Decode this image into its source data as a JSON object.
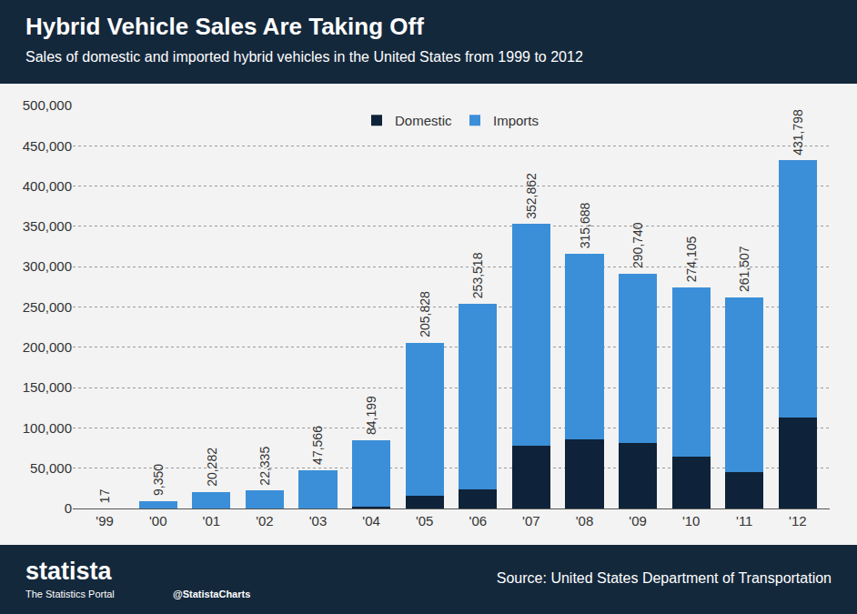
{
  "header": {
    "title": "Hybrid Vehicle Sales Are Taking Off",
    "subtitle": "Sales of domestic and imported hybrid vehicles in the United States from 1999 to 2012"
  },
  "chart_data": {
    "type": "bar",
    "stacked": true,
    "grid": true,
    "legend": "top",
    "categories": [
      "'99",
      "'00",
      "'01",
      "'02",
      "'03",
      "'04",
      "'05",
      "'06",
      "'07",
      "'08",
      "'09",
      "'10",
      "'11",
      "'12"
    ],
    "series": [
      {
        "name": "Domestic",
        "color": "#0e2339",
        "values": [
          0,
          0,
          0,
          0,
          0,
          2000,
          16000,
          24000,
          78000,
          86000,
          81000,
          64000,
          45000,
          113000
        ]
      },
      {
        "name": "Imports",
        "color": "#3b8fd8",
        "values": [
          17,
          9350,
          20282,
          22335,
          47566,
          82199,
          189828,
          229518,
          274862,
          229688,
          209740,
          210105,
          216507,
          318798
        ]
      }
    ],
    "totals": {
      "values": [
        17,
        9350,
        20282,
        22335,
        47566,
        84199,
        205828,
        253518,
        352862,
        315688,
        290740,
        274105,
        261507,
        431798
      ],
      "value_labels": [
        "17",
        "9,350",
        "20,282",
        "22,335",
        "47,566",
        "84,199",
        "205,828",
        "253,518",
        "352,862",
        "315,688",
        "290,740",
        "274,105",
        "261,507",
        "431,798"
      ]
    },
    "ylim": [
      0,
      500000
    ],
    "yticks": [
      0,
      {
        "value": 50000,
        "label": "50,000"
      },
      {
        "value": 100000,
        "label": "100,000"
      },
      {
        "value": 150000,
        "label": "150,000"
      },
      {
        "value": 200000,
        "label": "200,000"
      },
      {
        "value": 250000,
        "label": "250,000"
      },
      {
        "value": 300000,
        "label": "300,000"
      },
      {
        "value": 350000,
        "label": "350,000"
      },
      {
        "value": 400000,
        "label": "400,000"
      },
      {
        "value": 450000,
        "label": "450,000"
      },
      {
        "value": 500000,
        "label": "500,000"
      }
    ]
  },
  "footer": {
    "brand": "statista",
    "tagline": "The Statistics Portal",
    "handle": "@StatistaCharts",
    "source": "Source: United States Department of Transportation"
  }
}
